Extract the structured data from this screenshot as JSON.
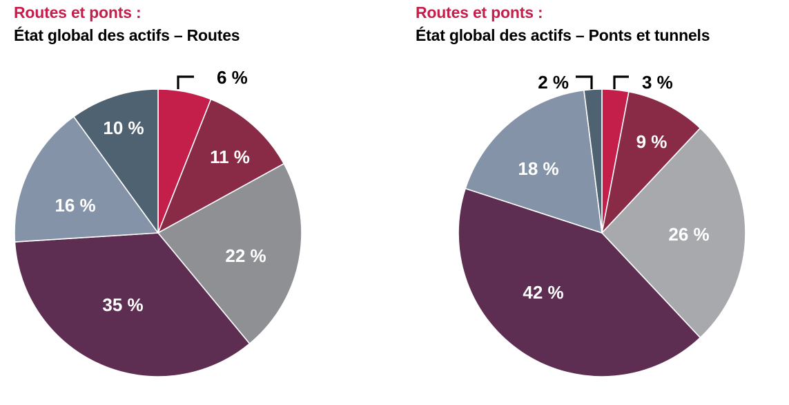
{
  "colors": {
    "kicker": "#c41e4a",
    "slice_bright": "#c41e4a",
    "slice_maroon": "#892a46",
    "slice_gray": "#8f9094",
    "slice_plum": "#5e2e52",
    "slice_bluegray": "#8493a8",
    "slice_slate": "#4f6272",
    "slice_gray_light": "#a8a9ad",
    "label_inside": "#ffffff",
    "label_outside": "#000000"
  },
  "charts": [
    {
      "kicker": "Routes et ponts :",
      "title": "État global des actifs – Routes"
    },
    {
      "kicker": "Routes et ponts :",
      "title": "État global des actifs – Ponts et tunnels"
    }
  ],
  "chart_data": [
    {
      "type": "pie",
      "title": "Routes et ponts : État global des actifs – Routes",
      "start_angle": "12 o'clock, clockwise",
      "slices": [
        {
          "label": "6 %",
          "value": 6,
          "color": "#c41e4a",
          "label_position": "outside"
        },
        {
          "label": "11 %",
          "value": 11,
          "color": "#892a46",
          "label_position": "inside"
        },
        {
          "label": "22 %",
          "value": 22,
          "color": "#8f9094",
          "label_position": "inside"
        },
        {
          "label": "35 %",
          "value": 35,
          "color": "#5e2e52",
          "label_position": "inside"
        },
        {
          "label": "16 %",
          "value": 16,
          "color": "#8493a8",
          "label_position": "inside"
        },
        {
          "label": "10 %",
          "value": 10,
          "color": "#4f6272",
          "label_position": "inside"
        }
      ],
      "legend": "none"
    },
    {
      "type": "pie",
      "title": "Routes et ponts : État global des actifs – Ponts et tunnels",
      "start_angle": "12 o'clock, clockwise",
      "slices": [
        {
          "label": "3 %",
          "value": 3,
          "color": "#c41e4a",
          "label_position": "outside"
        },
        {
          "label": "9 %",
          "value": 9,
          "color": "#892a46",
          "label_position": "inside"
        },
        {
          "label": "26 %",
          "value": 26,
          "color": "#a8a9ad",
          "label_position": "inside"
        },
        {
          "label": "42 %",
          "value": 42,
          "color": "#5e2e52",
          "label_position": "inside"
        },
        {
          "label": "18 %",
          "value": 18,
          "color": "#8493a8",
          "label_position": "inside"
        },
        {
          "label": "2 %",
          "value": 2,
          "color": "#4f6272",
          "label_position": "outside"
        }
      ],
      "legend": "none"
    }
  ]
}
